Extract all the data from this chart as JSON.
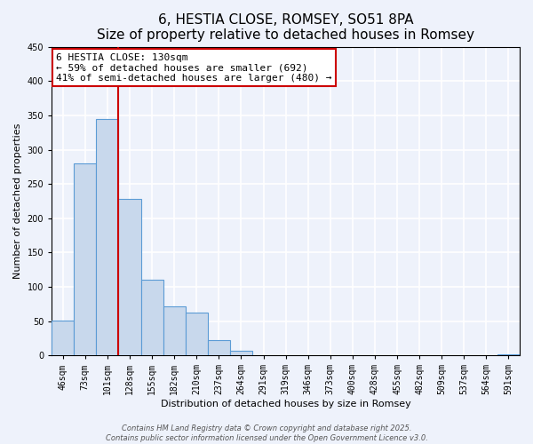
{
  "title": "6, HESTIA CLOSE, ROMSEY, SO51 8PA",
  "subtitle": "Size of property relative to detached houses in Romsey",
  "xlabel": "Distribution of detached houses by size in Romsey",
  "ylabel": "Number of detached properties",
  "categories": [
    "46sqm",
    "73sqm",
    "101sqm",
    "128sqm",
    "155sqm",
    "182sqm",
    "210sqm",
    "237sqm",
    "264sqm",
    "291sqm",
    "319sqm",
    "346sqm",
    "373sqm",
    "400sqm",
    "428sqm",
    "455sqm",
    "482sqm",
    "509sqm",
    "537sqm",
    "564sqm",
    "591sqm"
  ],
  "values": [
    51,
    280,
    345,
    228,
    110,
    72,
    63,
    22,
    7,
    0,
    0,
    0,
    0,
    0,
    0,
    0,
    0,
    0,
    0,
    0,
    2
  ],
  "bar_color": "#c8d8ec",
  "bar_edge_color": "#5b9bd5",
  "vline_pos": 2.5,
  "vline_color": "#cc0000",
  "ylim": [
    0,
    450
  ],
  "annotation_title": "6 HESTIA CLOSE: 130sqm",
  "annotation_line1": "← 59% of detached houses are smaller (692)",
  "annotation_line2": "41% of semi-detached houses are larger (480) →",
  "annotation_box_color": "#ffffff",
  "annotation_box_edge_color": "#cc0000",
  "footer_line1": "Contains HM Land Registry data © Crown copyright and database right 2025.",
  "footer_line2": "Contains public sector information licensed under the Open Government Licence v3.0.",
  "background_color": "#eef2fb",
  "grid_color": "#ffffff",
  "title_fontsize": 11,
  "axis_label_fontsize": 8,
  "tick_fontsize": 7,
  "annotation_fontsize": 8,
  "footer_fontsize": 6
}
